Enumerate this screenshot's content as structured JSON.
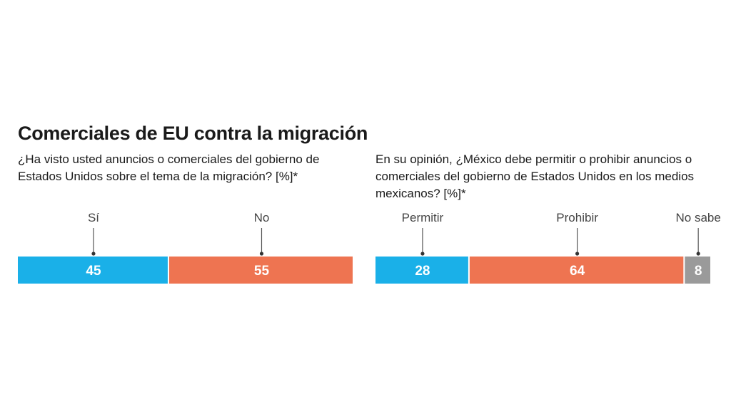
{
  "title": "Comerciales de EU contra la migración",
  "colors": {
    "blue": "#1ab0e8",
    "orange": "#ee7451",
    "gray": "#9a9a9a"
  },
  "chart_data": [
    {
      "type": "bar",
      "subtype": "stacked-horizontal-100",
      "question": "¿Ha visto usted anuncios o comerciales del gobierno de Estados Unidos sobre el tema de la migración? [%]*",
      "unit": "%",
      "series": [
        {
          "name": "Sí",
          "value": 45,
          "color": "#1ab0e8"
        },
        {
          "name": "No",
          "value": 55,
          "color": "#ee7451"
        }
      ]
    },
    {
      "type": "bar",
      "subtype": "stacked-horizontal-100",
      "question": "En su opinión, ¿México debe permitir o prohibir anuncios o comerciales del gobierno de Estados Unidos en los medios mexicanos? [%]*",
      "unit": "%",
      "series": [
        {
          "name": "Permitir",
          "value": 28,
          "color": "#1ab0e8"
        },
        {
          "name": "Prohibir",
          "value": 64,
          "color": "#ee7451"
        },
        {
          "name": "No sabe",
          "value": 8,
          "color": "#9a9a9a"
        }
      ]
    }
  ]
}
